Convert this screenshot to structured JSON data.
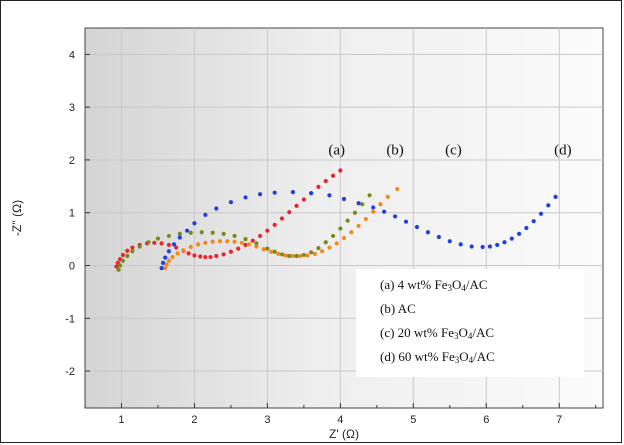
{
  "chart_data": {
    "type": "scatter",
    "xlabel": "Z' (Ω)",
    "ylabel": "-Z'' (Ω)",
    "xlim": [
      0.5,
      7.6
    ],
    "ylim": [
      -2.7,
      4.5
    ],
    "xticks": [
      "1",
      "2",
      "3",
      "4",
      "5",
      "6",
      "7"
    ],
    "yticks": [
      "4",
      "3",
      "2",
      "1",
      "0",
      "-1",
      "-2"
    ],
    "grid": true,
    "legend_position": "bottom-right",
    "curve_tags": [
      {
        "text": "(a)",
        "x": 3.95,
        "y": 2.1
      },
      {
        "text": "(b)",
        "x": 4.75,
        "y": 2.1
      },
      {
        "text": "(c)",
        "x": 5.55,
        "y": 2.1
      },
      {
        "text": "(d)",
        "x": 7.05,
        "y": 2.1
      }
    ],
    "legend": [
      {
        "text": "(a) 4 wt% Fe",
        "sub1": "3",
        "mid": "O",
        "sub2": "4",
        "tail": "/AC"
      },
      {
        "text": "(b) AC",
        "sub1": "",
        "mid": "",
        "sub2": "",
        "tail": ""
      },
      {
        "text": "(c) 20 wt% Fe",
        "sub1": "3",
        "mid": "O",
        "sub2": "4",
        "tail": "/AC"
      },
      {
        "text": "(d) 60 wt% Fe",
        "sub1": "3",
        "mid": "O",
        "sub2": "4",
        "tail": "/AC"
      }
    ],
    "series": [
      {
        "color": "#e8262a",
        "x": [
          0.93,
          0.95,
          0.98,
          1.02,
          1.08,
          1.15,
          1.25,
          1.35,
          1.45,
          1.55,
          1.65,
          1.75,
          1.85,
          1.92,
          2.0,
          2.08,
          2.15,
          2.22,
          2.3,
          2.4,
          2.5,
          2.6,
          2.7,
          2.8,
          2.9,
          3.0,
          3.1,
          3.2,
          3.3,
          3.4,
          3.5,
          3.6,
          3.7,
          3.8,
          3.9,
          4.0
        ],
        "y": [
          -0.02,
          0.05,
          0.12,
          0.2,
          0.28,
          0.34,
          0.39,
          0.42,
          0.43,
          0.42,
          0.39,
          0.34,
          0.28,
          0.23,
          0.19,
          0.17,
          0.16,
          0.16,
          0.18,
          0.21,
          0.26,
          0.32,
          0.39,
          0.47,
          0.56,
          0.66,
          0.77,
          0.89,
          1.01,
          1.13,
          1.25,
          1.37,
          1.49,
          1.6,
          1.7,
          1.8
        ]
      },
      {
        "color": "#f08a1e",
        "x": [
          1.6,
          1.62,
          1.65,
          1.7,
          1.77,
          1.85,
          1.95,
          2.05,
          2.15,
          2.25,
          2.35,
          2.45,
          2.55,
          2.65,
          2.75,
          2.85,
          2.95,
          3.05,
          3.15,
          3.25,
          3.35,
          3.45,
          3.55,
          3.65,
          3.75,
          3.85,
          3.95,
          4.05,
          4.15,
          4.25,
          4.35,
          4.45,
          4.55,
          4.65,
          4.78
        ],
        "y": [
          -0.05,
          0.02,
          0.09,
          0.16,
          0.23,
          0.29,
          0.35,
          0.4,
          0.43,
          0.45,
          0.46,
          0.46,
          0.45,
          0.43,
          0.4,
          0.36,
          0.31,
          0.26,
          0.22,
          0.19,
          0.18,
          0.18,
          0.19,
          0.22,
          0.27,
          0.34,
          0.42,
          0.52,
          0.63,
          0.75,
          0.88,
          1.02,
          1.16,
          1.3,
          1.45
        ]
      },
      {
        "color": "#7a8a1a",
        "x": [
          0.96,
          0.98,
          1.02,
          1.08,
          1.15,
          1.25,
          1.37,
          1.5,
          1.65,
          1.8,
          1.95,
          2.1,
          2.25,
          2.4,
          2.55,
          2.7,
          2.85,
          3.0,
          3.1,
          3.2,
          3.3,
          3.4,
          3.5,
          3.6,
          3.7,
          3.8,
          3.9,
          4.0,
          4.1,
          4.2,
          4.3,
          4.4
        ],
        "y": [
          -0.08,
          0.0,
          0.09,
          0.18,
          0.27,
          0.36,
          0.44,
          0.51,
          0.56,
          0.6,
          0.62,
          0.63,
          0.62,
          0.6,
          0.56,
          0.5,
          0.42,
          0.32,
          0.26,
          0.21,
          0.18,
          0.18,
          0.2,
          0.25,
          0.33,
          0.44,
          0.56,
          0.7,
          0.85,
          1.0,
          1.16,
          1.33
        ]
      },
      {
        "color": "#1f3fe0",
        "x": [
          1.55,
          1.57,
          1.6,
          1.65,
          1.72,
          1.8,
          1.9,
          2.0,
          2.15,
          2.3,
          2.5,
          2.7,
          2.9,
          3.1,
          3.35,
          3.6,
          3.85,
          4.05,
          4.25,
          4.45,
          4.6,
          4.75,
          4.9,
          5.05,
          5.2,
          5.35,
          5.5,
          5.65,
          5.8,
          5.95,
          6.05,
          6.15,
          6.25,
          6.35,
          6.45,
          6.55,
          6.65,
          6.75,
          6.85,
          6.95
        ],
        "y": [
          -0.05,
          0.05,
          0.15,
          0.27,
          0.4,
          0.53,
          0.66,
          0.8,
          0.96,
          1.08,
          1.2,
          1.29,
          1.35,
          1.38,
          1.39,
          1.37,
          1.33,
          1.26,
          1.18,
          1.1,
          1.02,
          0.93,
          0.83,
          0.73,
          0.63,
          0.54,
          0.46,
          0.4,
          0.36,
          0.35,
          0.36,
          0.39,
          0.44,
          0.51,
          0.6,
          0.71,
          0.84,
          0.98,
          1.14,
          1.3
        ]
      }
    ]
  }
}
